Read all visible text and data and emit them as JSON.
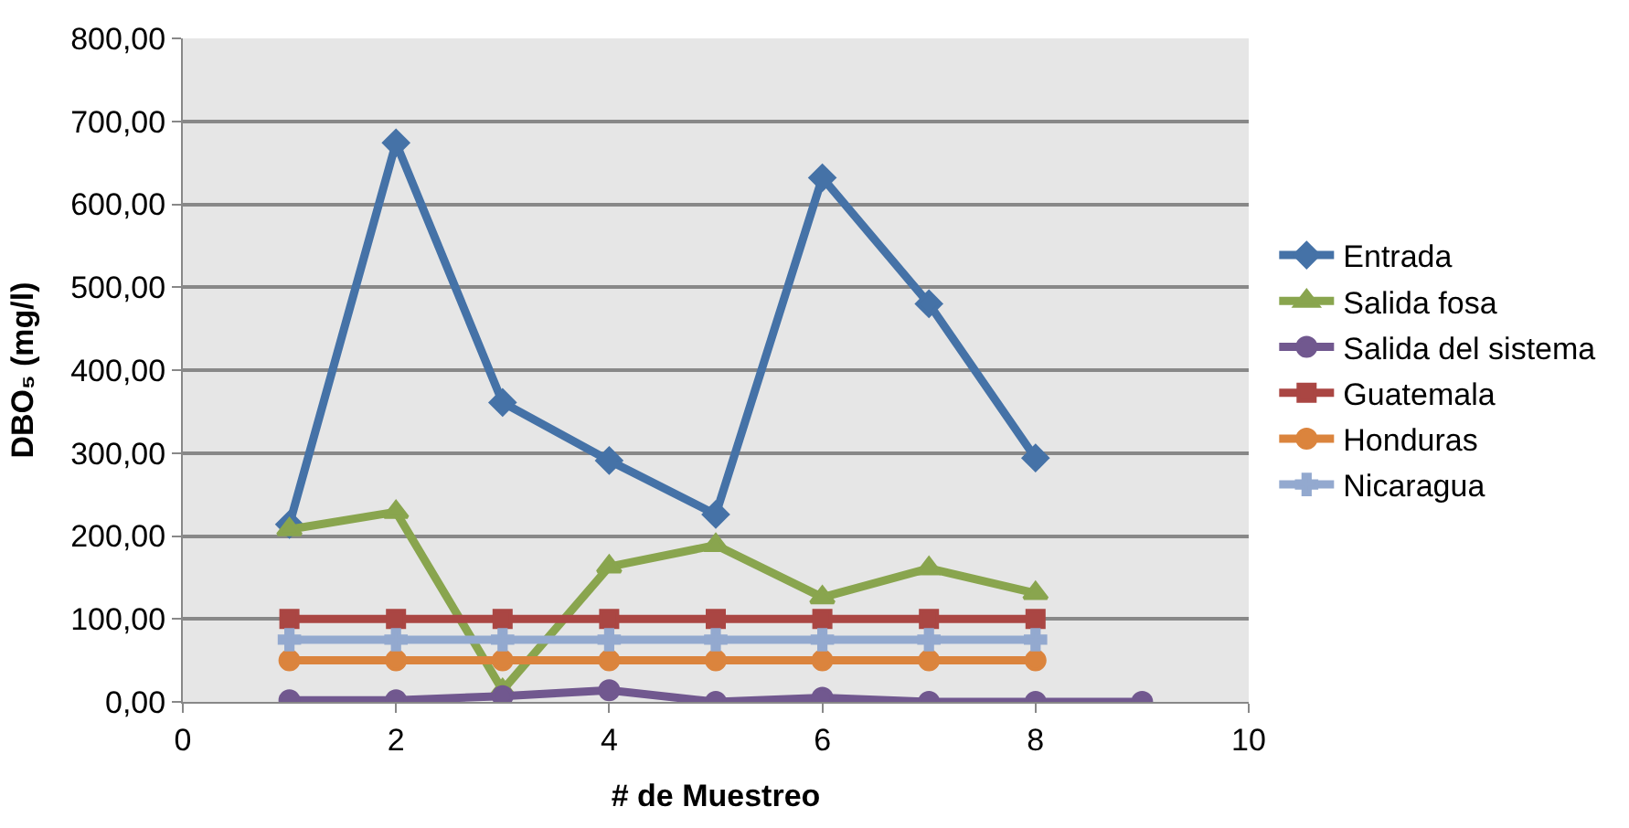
{
  "chart_data": {
    "type": "line",
    "xlabel": "# de Muestreo",
    "ylabel": "DBO₅ (mg/l)",
    "xlim": [
      0,
      10
    ],
    "xticks": [
      0,
      2,
      4,
      6,
      8,
      10
    ],
    "ylim": [
      0,
      800
    ],
    "yticks": [
      {
        "value": 0,
        "label": "0,00"
      },
      {
        "value": 100,
        "label": "100,00"
      },
      {
        "value": 200,
        "label": "200,00"
      },
      {
        "value": 300,
        "label": "300,00"
      },
      {
        "value": 400,
        "label": "400,00"
      },
      {
        "value": 500,
        "label": "500,00"
      },
      {
        "value": 600,
        "label": "600,00"
      },
      {
        "value": 700,
        "label": "700,00"
      },
      {
        "value": 800,
        "label": "800,00"
      }
    ],
    "grid": "y",
    "legend": "right",
    "series": [
      {
        "name": "Entrada",
        "color": "#4572a7",
        "marker": "diamond",
        "x": [
          1,
          2,
          3,
          4,
          5,
          6,
          7,
          8
        ],
        "values": [
          214,
          674,
          361,
          291,
          226,
          632,
          480,
          294
        ]
      },
      {
        "name": "Salida fosa",
        "color": "#89a54e",
        "marker": "triangle",
        "x": [
          1,
          2,
          3,
          4,
          5,
          6,
          7,
          8
        ],
        "values": [
          208,
          229,
          14,
          163,
          189,
          126,
          161,
          131
        ]
      },
      {
        "name": "Salida del sistema",
        "color": "#71588f",
        "marker": "circle",
        "x": [
          1,
          2,
          3,
          4,
          5,
          6,
          7,
          8,
          9
        ],
        "values": [
          2,
          2,
          7,
          14,
          0,
          5,
          0,
          0,
          0
        ]
      },
      {
        "name": "Guatemala",
        "color": "#aa4643",
        "marker": "square",
        "x": [
          1,
          2,
          3,
          4,
          5,
          6,
          7,
          8
        ],
        "values": [
          100,
          100,
          100,
          100,
          100,
          100,
          100,
          100
        ]
      },
      {
        "name": "Honduras",
        "color": "#db843d",
        "marker": "circle",
        "x": [
          1,
          2,
          3,
          4,
          5,
          6,
          7,
          8
        ],
        "values": [
          50,
          50,
          50,
          50,
          50,
          50,
          50,
          50
        ]
      },
      {
        "name": "Nicaragua",
        "color": "#93a9cf",
        "marker": "cross",
        "x": [
          1,
          2,
          3,
          4,
          5,
          6,
          7,
          8
        ],
        "values": [
          75,
          75,
          75,
          75,
          75,
          75,
          75,
          75
        ]
      }
    ]
  }
}
